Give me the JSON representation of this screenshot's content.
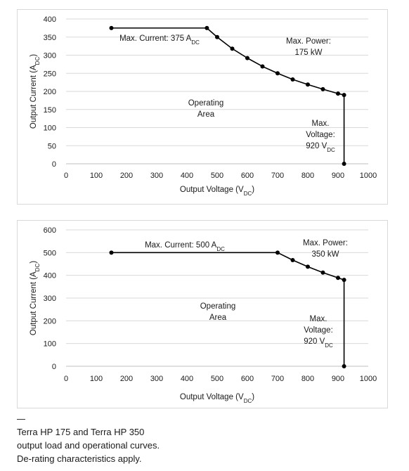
{
  "chart_data": [
    {
      "type": "line",
      "xlabel": "Output Voltage",
      "xlabel_sub": "DC",
      "ylabel": "Output Current",
      "ylabel_sub": "DC",
      "xlim": [
        0,
        1000
      ],
      "ylim": [
        0,
        400
      ],
      "xticks": [
        0,
        100,
        200,
        300,
        400,
        500,
        600,
        700,
        800,
        900,
        1000
      ],
      "yticks": [
        0,
        50,
        100,
        150,
        200,
        250,
        300,
        350,
        400
      ],
      "grid": "horizontal",
      "series": [
        {
          "x": [
            150,
            466,
            500,
            550,
            600,
            650,
            700,
            750,
            800,
            850,
            900,
            920,
            920
          ],
          "y": [
            375,
            375,
            350,
            318,
            292,
            269,
            250,
            233,
            219,
            206,
            194,
            190,
            0
          ],
          "markers": [
            0,
            1,
            2,
            3,
            4,
            5,
            6,
            7,
            8,
            9,
            10,
            11,
            12
          ]
        }
      ],
      "annotations": [
        {
          "lines": [
            "Max. Current:  375 A|DC"
          ]
        },
        {
          "lines": [
            "Max. Power:",
            "175 kW"
          ]
        },
        {
          "lines": [
            "Operating",
            "Area"
          ]
        },
        {
          "lines": [
            "Max.",
            "Voltage:",
            "920 V|DC"
          ]
        }
      ]
    },
    {
      "type": "line",
      "xlabel": "Output Voltage",
      "xlabel_sub": "DC",
      "ylabel": "Output Current",
      "ylabel_sub": "DC",
      "xlim": [
        0,
        1000
      ],
      "ylim": [
        0,
        600
      ],
      "xticks": [
        0,
        100,
        200,
        300,
        400,
        500,
        600,
        700,
        800,
        900,
        1000
      ],
      "yticks": [
        0,
        100,
        200,
        300,
        400,
        500,
        600
      ],
      "grid": "horizontal",
      "series": [
        {
          "x": [
            150,
            700,
            750,
            800,
            850,
            900,
            920,
            920
          ],
          "y": [
            500,
            500,
            467,
            438,
            412,
            389,
            380,
            0
          ],
          "markers": [
            0,
            1,
            2,
            3,
            4,
            5,
            6,
            7
          ]
        }
      ],
      "annotations": [
        {
          "lines": [
            "Max. Current:  500 A|DC"
          ]
        },
        {
          "lines": [
            "Max. Power:",
            "350 kW"
          ]
        },
        {
          "lines": [
            "Operating",
            "Area"
          ]
        },
        {
          "lines": [
            "Max.",
            "Voltage:",
            "920 V|DC"
          ]
        }
      ]
    }
  ],
  "caption": {
    "lines": [
      "Terra HP 175 and Terra HP 350",
      "output load and operational curves.",
      "De-rating characteristics apply."
    ]
  }
}
